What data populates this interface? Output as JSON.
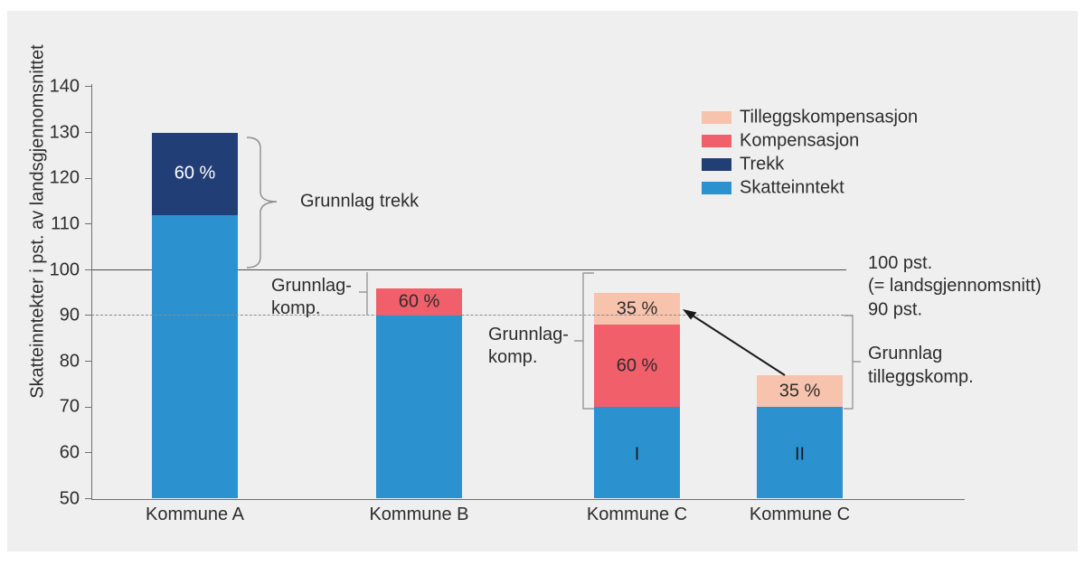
{
  "figure": {
    "background": "#ffffff",
    "panel_color": "#efeff0"
  },
  "chart_data": {
    "type": "bar",
    "stacked": true,
    "title": "",
    "xlabel": "",
    "ylabel": "Skatteinntekter i pst. av landsgjennomsnittet",
    "ylim": [
      50,
      140
    ],
    "yticks": [
      50,
      60,
      70,
      80,
      90,
      100,
      110,
      120,
      130,
      140
    ],
    "grid": false,
    "legend": {
      "position": "top-right",
      "items": [
        {
          "label": "Tilleggskompensasjon",
          "series": "Tilleggskompensasjon"
        },
        {
          "label": "Kompensasjon",
          "series": "Kompensasjon"
        },
        {
          "label": "Trekk",
          "series": "Trekk"
        },
        {
          "label": "Skatteinntekt",
          "series": "Skatteinntekt"
        }
      ]
    },
    "series_colors": {
      "Skatteinntekt": "#2b92cf",
      "Trekk": "#223e76",
      "Kompensasjon": "#f05f6a",
      "Tilleggskompensasjon": "#f7c3ac"
    },
    "reference_lines": [
      {
        "value": 100,
        "style": "solid"
      },
      {
        "value": 90,
        "style": "dashed"
      }
    ],
    "bars": [
      {
        "category": "Kommune A",
        "variant": "",
        "segments": [
          {
            "series": "Skatteinntekt",
            "from": 50,
            "to": 112,
            "label": ""
          },
          {
            "series": "Trekk",
            "from": 112,
            "to": 130,
            "label": "60 %"
          }
        ]
      },
      {
        "category": "Kommune B",
        "variant": "",
        "segments": [
          {
            "series": "Skatteinntekt",
            "from": 50,
            "to": 90,
            "label": ""
          },
          {
            "series": "Kompensasjon",
            "from": 90,
            "to": 96,
            "label": "60 %"
          }
        ]
      },
      {
        "category": "Kommune C",
        "variant": "I",
        "segments": [
          {
            "series": "Skatteinntekt",
            "from": 50,
            "to": 70,
            "label": ""
          },
          {
            "series": "Kompensasjon",
            "from": 70,
            "to": 88,
            "label": "60 %"
          },
          {
            "series": "Tilleggskompensasjon",
            "from": 88,
            "to": 95,
            "label": "35 %"
          }
        ]
      },
      {
        "category": "Kommune C",
        "variant": "II",
        "segments": [
          {
            "series": "Skatteinntekt",
            "from": 50,
            "to": 70,
            "label": ""
          },
          {
            "series": "Tilleggskompensasjon",
            "from": 70,
            "to": 77,
            "label": "35 %"
          }
        ]
      }
    ]
  },
  "annotations": {
    "grunnlag_trekk": "Grunnlag trekk",
    "grunnlag_komp_b": [
      "Grunnlag-",
      "komp."
    ],
    "grunnlag_komp_c": [
      "Grunnlag-",
      "komp."
    ],
    "pct_100": [
      "100 pst.",
      "(= landsgjennomsnitt)"
    ],
    "pct_90": "90 pst.",
    "grunnlag_tilleggskomp": [
      "Grunnlag",
      "tilleggskomp."
    ]
  },
  "colors": {
    "text": "#2d2d2d",
    "axis": "#707070",
    "reference_solid": "#4d4d4d",
    "reference_dashed": "#8a8a8a",
    "bracket": "#999999",
    "arrow": "#1a1a1a",
    "bar_label_dark": "#2e2e2e",
    "bar_label_light": "#ffffff"
  }
}
